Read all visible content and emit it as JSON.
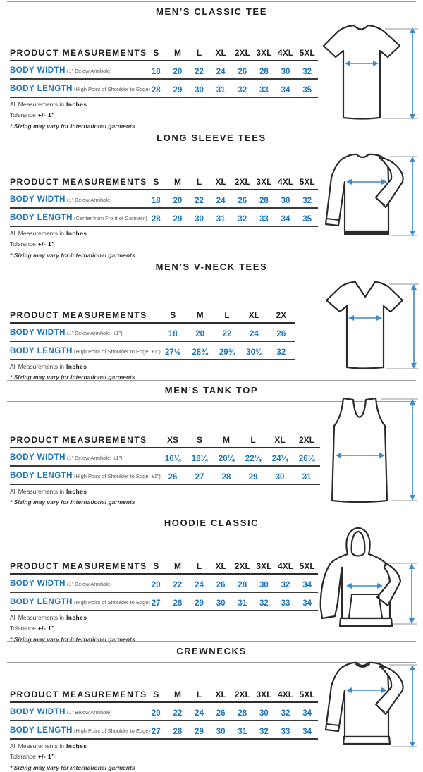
{
  "colors": {
    "accent_blue": "#1b75bb",
    "arrow_blue": "#3b8ccd",
    "line_gray": "#9a9a9a",
    "text_dark": "#231f20"
  },
  "sections": [
    {
      "title": "MEN’S CLASSIC TEE",
      "garment": "classic-tee",
      "table": {
        "header_label": "PRODUCT MEASUREMENTS",
        "sizes": [
          "S",
          "M",
          "L",
          "XL",
          "2XL",
          "3XL",
          "4XL",
          "5XL"
        ],
        "rows": [
          {
            "label": "BODY WIDTH",
            "note": "(1” Below Armhole)",
            "values": [
              "18",
              "20",
              "22",
              "24",
              "26",
              "28",
              "30",
              "32"
            ]
          },
          {
            "label": "BODY LENGTH",
            "note": "(High Point of Shoulder to Edge)",
            "values": [
              "28",
              "29",
              "30",
              "31",
              "32",
              "33",
              "34",
              "35"
            ]
          }
        ]
      },
      "footnotes": {
        "measurements_prefix": "All Measurements in",
        "measurements_unit": "Inches",
        "tolerance_prefix": "Tolerance",
        "tolerance_value": "+/- 1”",
        "sizing_note": "* Sizing may vary for international garments"
      }
    },
    {
      "title": "LONG SLEEVE TEES",
      "garment": "long-sleeve-tee",
      "table": {
        "header_label": "PRODUCT MEASUREMENTS",
        "sizes": [
          "S",
          "M",
          "L",
          "XL",
          "2XL",
          "3XL",
          "4XL",
          "5XL"
        ],
        "rows": [
          {
            "label": "BODY WIDTH",
            "note": "(1” Below Armhole)",
            "values": [
              "18",
              "20",
              "22",
              "24",
              "26",
              "28",
              "30",
              "32"
            ]
          },
          {
            "label": "BODY LENGTH",
            "note": "(Center from Front of Garment)",
            "values": [
              "28",
              "29",
              "30",
              "31",
              "32",
              "33",
              "34",
              "35"
            ]
          }
        ]
      },
      "footnotes": {
        "measurements_prefix": "All Measurements in",
        "measurements_unit": "Inches",
        "tolerance_prefix": "Tolerance",
        "tolerance_value": "+/- 1”",
        "sizing_note": "* Sizing may vary for international garments"
      }
    },
    {
      "title": "MEN’S V-NECK TEES",
      "garment": "v-neck-tee",
      "table": {
        "header_label": "PRODUCT MEASUREMENTS",
        "sizes": [
          "S",
          "M",
          "L",
          "XL",
          "2X"
        ],
        "rows": [
          {
            "label": "BODY WIDTH",
            "note": "(1” Below Armhole, ±1”)",
            "values": [
              "18",
              "20",
              "22",
              "24",
              "26"
            ],
            "note2": ""
          },
          {
            "label": "BODY LENGTH",
            "note": "(High Point of Shoulder to Edge, ±1”)",
            "values": [
              "27½",
              "28¾",
              "29¾",
              "30¾",
              "32"
            ]
          }
        ]
      },
      "footnotes": {
        "measurements_prefix": "All Measurements in",
        "measurements_unit": "Inches",
        "sizing_note": "* Sizing may vary for international garments"
      }
    },
    {
      "title": "MEN’S TANK TOP",
      "garment": "tank-top",
      "table": {
        "header_label": "PRODUCT MEASUREMENTS",
        "sizes": [
          "XS",
          "S",
          "M",
          "L",
          "XL",
          "2XL"
        ],
        "rows": [
          {
            "label": "BODY WIDTH",
            "note": "(1” Below Armhole, ±1”)",
            "values": [
              "16¼",
              "18¼",
              "20¼",
              "22¼",
              "24¼",
              "26¼"
            ]
          },
          {
            "label": "BODY LENGTH",
            "note": "(High Point of Shoulder to Edge, ±1”)",
            "values": [
              "26",
              "27",
              "28",
              "29",
              "30",
              "31"
            ]
          }
        ]
      },
      "footnotes": {
        "measurements_prefix": "All Measurements in",
        "measurements_unit": "Inches",
        "sizing_note": "* Sizing may vary for international garments"
      }
    },
    {
      "title": "HOODIE CLASSIC",
      "garment": "hoodie",
      "table": {
        "header_label": "PRODUCT MEASUREMENTS",
        "sizes": [
          "S",
          "M",
          "L",
          "XL",
          "2XL",
          "3XL",
          "4XL",
          "5XL"
        ],
        "rows": [
          {
            "label": "BODY WIDTH",
            "note": "(1” Below Armhole)",
            "values": [
              "20",
              "22",
              "24",
              "26",
              "28",
              "30",
              "32",
              "34"
            ]
          },
          {
            "label": "BODY LENGTH",
            "note": "(High Point of Shoulder to Edge)",
            "values": [
              "27",
              "28",
              "29",
              "30",
              "31",
              "32",
              "33",
              "34"
            ]
          }
        ]
      },
      "footnotes": {
        "measurements_prefix": "All Measurements in",
        "measurements_unit": "Inches",
        "tolerance_prefix": "Tolerance",
        "tolerance_value": "+/- 1”",
        "sizing_note": "* Sizing may vary for international garments"
      }
    },
    {
      "title": "CREWNECKS",
      "garment": "crewneck",
      "table": {
        "header_label": "PRODUCT MEASUREMENTS",
        "sizes": [
          "S",
          "M",
          "L",
          "XL",
          "2XL",
          "3XL",
          "4XL",
          "5XL"
        ],
        "rows": [
          {
            "label": "BODY WIDTH",
            "note": "(1” Below Armhole)",
            "values": [
              "20",
              "22",
              "24",
              "26",
              "28",
              "30",
              "32",
              "34"
            ]
          },
          {
            "label": "BODY LENGTH",
            "note": "(High Point of Shoulder to Edge)",
            "values": [
              "27",
              "28",
              "29",
              "30",
              "31",
              "32",
              "33",
              "34"
            ]
          }
        ]
      },
      "footnotes": {
        "measurements_prefix": "All Measurements in",
        "measurements_unit": "Inches",
        "tolerance_prefix": "Tolerance",
        "tolerance_value": "+/- 1”",
        "sizing_note": "* Sizing may vary for international garments"
      }
    }
  ]
}
